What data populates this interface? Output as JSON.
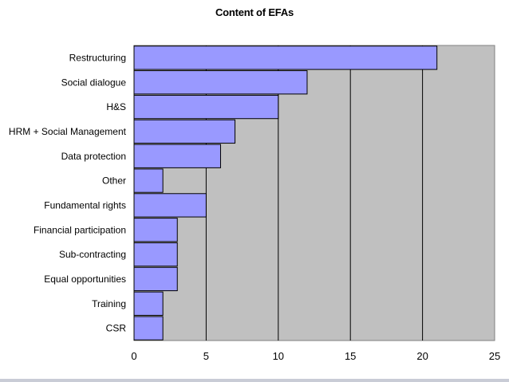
{
  "chart_data": {
    "type": "bar",
    "orientation": "horizontal",
    "title": "Content of EFAs",
    "xlabel": "",
    "ylabel": "",
    "categories": [
      "Restructuring",
      "Social dialogue",
      "H&S",
      "HRM + Social Management",
      "Data protection",
      "Other",
      "Fundamental rights",
      "Financial participation",
      "Sub-contracting",
      "Equal opportunities",
      "Training",
      "CSR"
    ],
    "values": [
      21,
      12,
      10,
      7,
      6,
      2,
      5,
      3,
      3,
      3,
      2,
      2
    ],
    "xlim": [
      0,
      25
    ],
    "xticks": [
      "0",
      "5",
      "10",
      "15",
      "20",
      "25"
    ],
    "grid": "vertical",
    "legend": "none",
    "colors": {
      "bar_fill": "#9999ff",
      "bar_stroke": "#000000",
      "plot_background": "#c0c0c0",
      "gridline": "#000000"
    }
  }
}
